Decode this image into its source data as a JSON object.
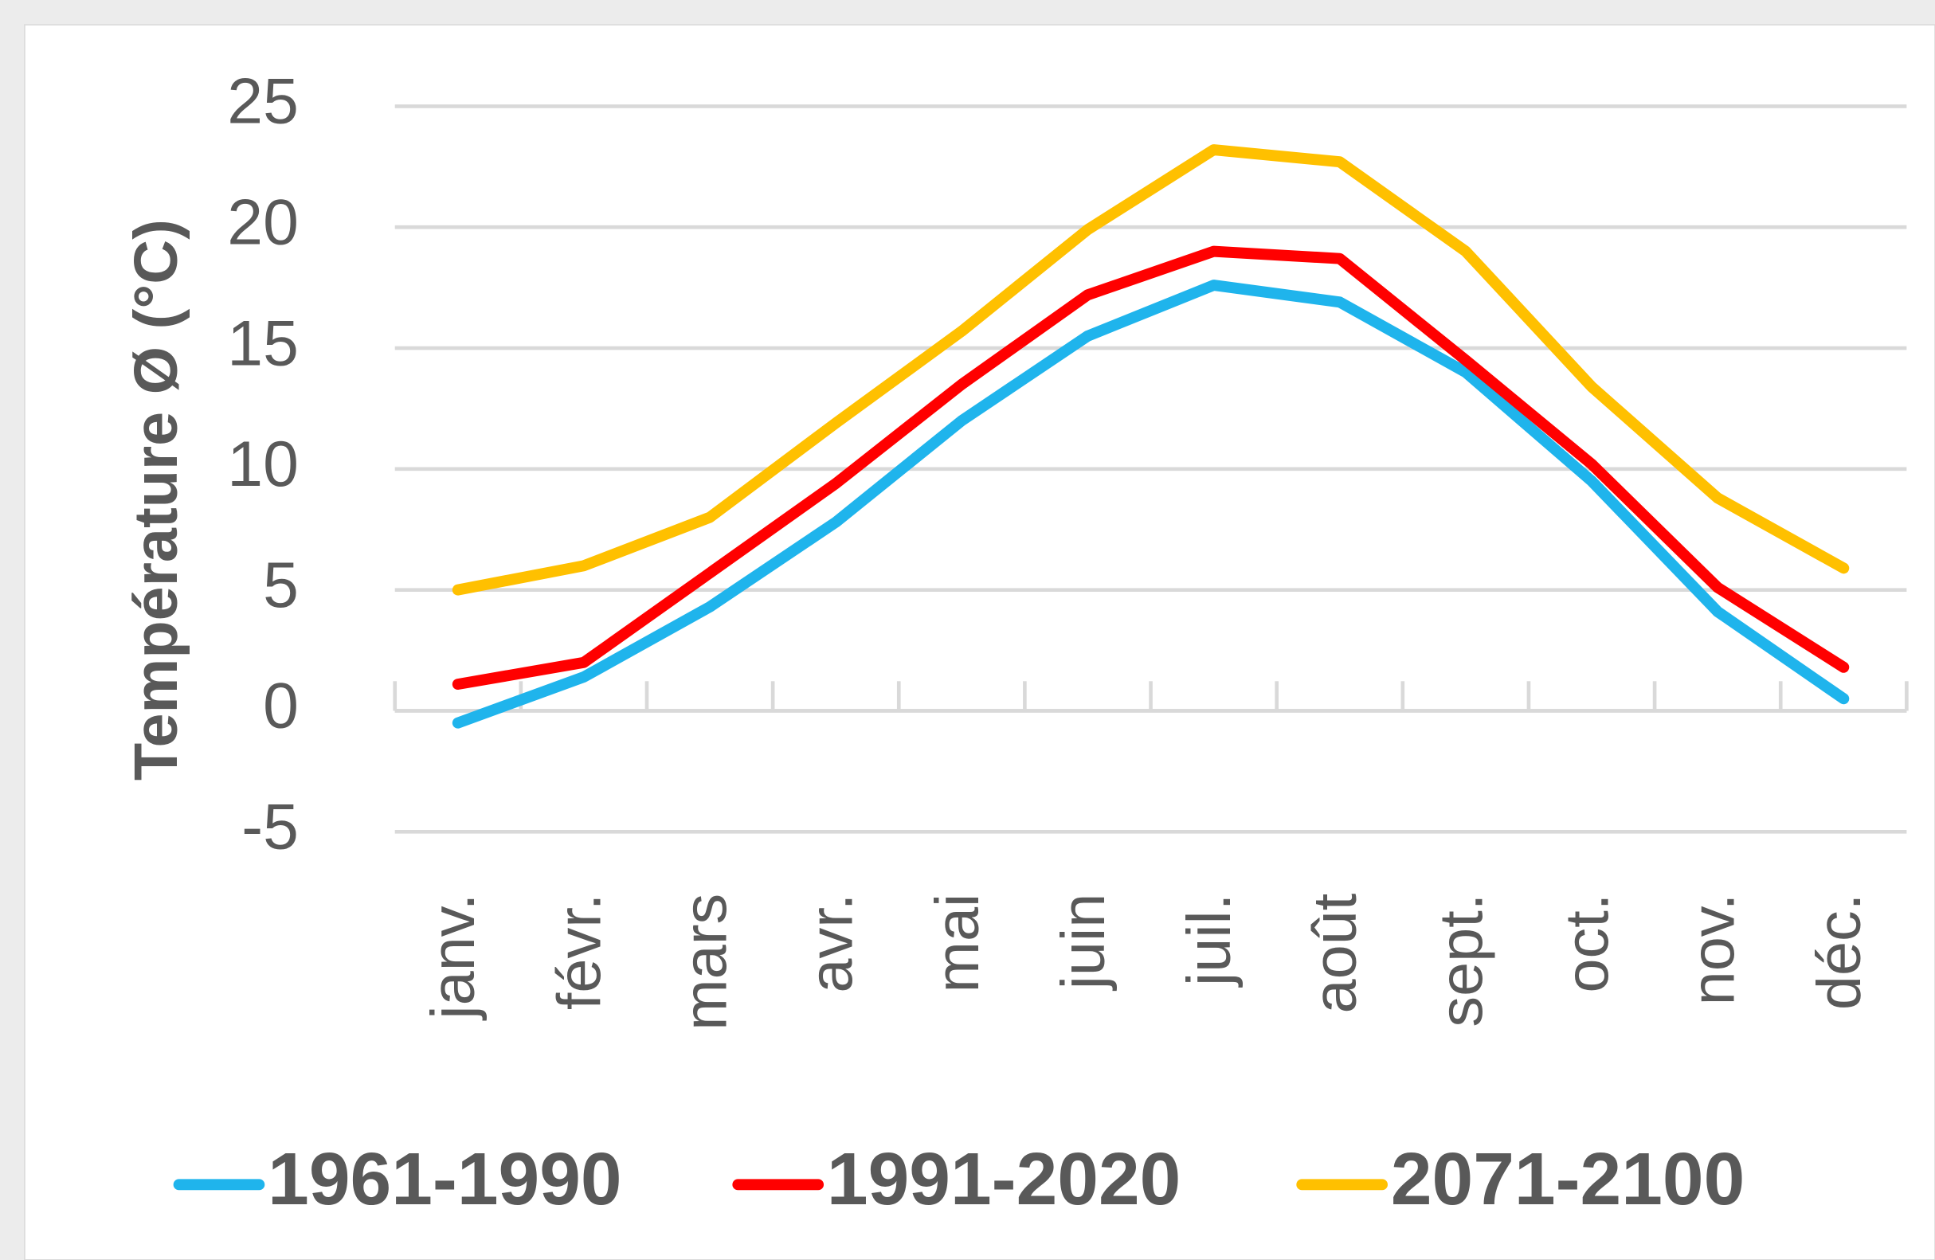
{
  "chart_data": {
    "type": "line",
    "y_label": "Température Ø (°C)",
    "categories": [
      "janv.",
      "févr.",
      "mars",
      "avr.",
      "mai",
      "juin",
      "juil.",
      "août",
      "sept.",
      "oct.",
      "nov.",
      "déc."
    ],
    "series": [
      {
        "name": "1961-1990",
        "color": "#1fb4ec",
        "values": [
          -0.5,
          1.4,
          4.3,
          7.8,
          12.0,
          15.5,
          17.6,
          16.9,
          14.0,
          9.5,
          4.1,
          0.5
        ]
      },
      {
        "name": "1991-2020",
        "color": "#ff0000",
        "values": [
          1.1,
          2.0,
          5.7,
          9.4,
          13.5,
          17.2,
          19.0,
          18.7,
          14.5,
          10.2,
          5.1,
          1.8
        ]
      },
      {
        "name": "2071-2100",
        "color": "#ffc000",
        "values": [
          5.0,
          6.0,
          8.0,
          11.9,
          15.7,
          19.9,
          23.2,
          22.7,
          19.0,
          13.4,
          8.8,
          5.9
        ]
      }
    ],
    "ylim": [
      -5,
      25
    ],
    "yticks": [
      -5,
      0,
      5,
      10,
      15,
      20,
      25
    ],
    "grid": true,
    "legend": "bottom"
  }
}
